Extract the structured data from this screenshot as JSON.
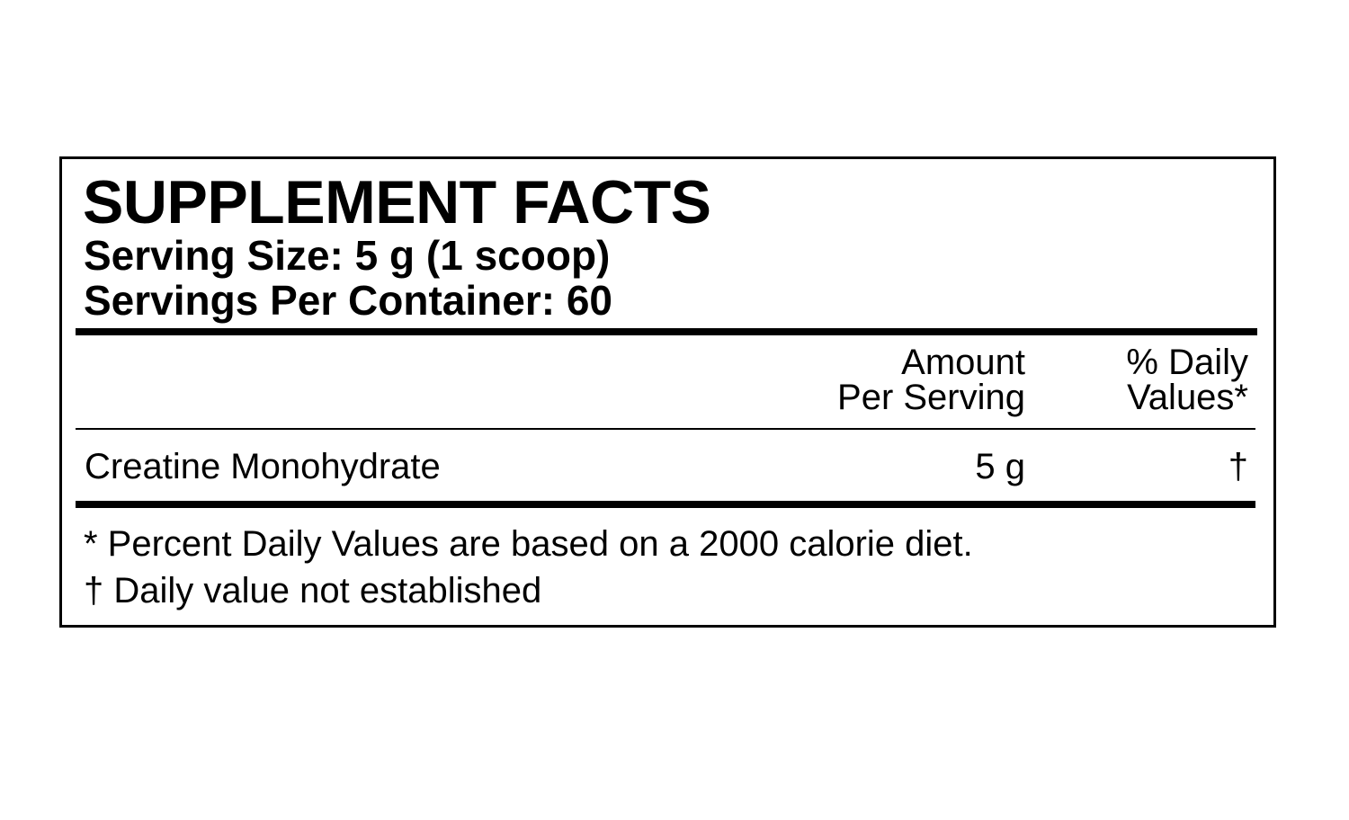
{
  "label": {
    "title": "SUPPLEMENT FACTS",
    "serving_size": "Serving Size: 5 g (1 scoop)",
    "servings_per_container": "Servings Per Container:  60",
    "columns": {
      "amount_line1": "Amount",
      "amount_line2": "Per Serving",
      "dv_line1": "% Daily",
      "dv_line2": "Values*"
    },
    "rows": [
      {
        "name": "Creatine Monohydrate",
        "amount": "5 g",
        "dv": "†"
      }
    ],
    "footnotes": [
      "* Percent Daily Values are based on a 2000 calorie diet.",
      "† Daily value not established"
    ]
  }
}
